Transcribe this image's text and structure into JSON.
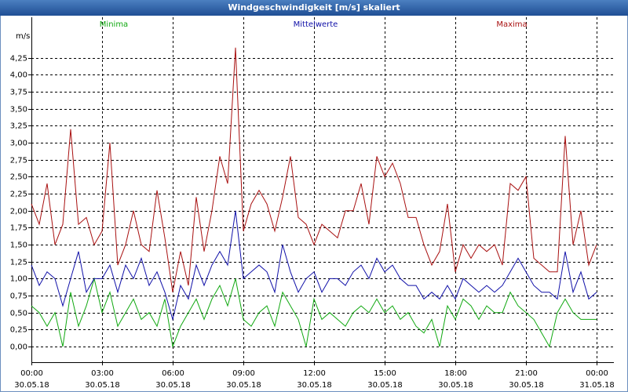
{
  "chart_data": {
    "type": "line",
    "title": "Windgeschwindigkeit [m/s] skaliert",
    "y_label": "m/s",
    "x": [
      0,
      20,
      40,
      60,
      80,
      100,
      120,
      140,
      160,
      180,
      200,
      220,
      240,
      260,
      280,
      300,
      320,
      340,
      360,
      380,
      400,
      420,
      440,
      460,
      480,
      500,
      520,
      540,
      560,
      580,
      600,
      620,
      640,
      660,
      680,
      700,
      720,
      740,
      760,
      780,
      800,
      820,
      840,
      860,
      880,
      900,
      920,
      940,
      960,
      980,
      1000,
      1020,
      1040,
      1060,
      1080,
      1100,
      1120,
      1140,
      1160,
      1180,
      1200,
      1220,
      1240,
      1260,
      1280,
      1300,
      1320,
      1340,
      1360,
      1380,
      1400,
      1420,
      1440
    ],
    "series": [
      {
        "name": "Minima",
        "color": "#10a810",
        "values": [
          0.6,
          0.5,
          0.3,
          0.5,
          0.0,
          0.8,
          0.3,
          0.6,
          1.0,
          0.5,
          0.8,
          0.3,
          0.5,
          0.7,
          0.4,
          0.5,
          0.3,
          0.7,
          0.0,
          0.3,
          0.5,
          0.7,
          0.4,
          0.7,
          0.9,
          0.6,
          1.0,
          0.4,
          0.3,
          0.5,
          0.6,
          0.3,
          0.8,
          0.6,
          0.4,
          0.0,
          0.7,
          0.4,
          0.5,
          0.4,
          0.3,
          0.5,
          0.6,
          0.5,
          0.7,
          0.5,
          0.6,
          0.4,
          0.5,
          0.3,
          0.2,
          0.4,
          0.0,
          0.6,
          0.4,
          0.7,
          0.6,
          0.4,
          0.6,
          0.5,
          0.5,
          0.8,
          0.6,
          0.5,
          0.4,
          0.2,
          0.0,
          0.5,
          0.7,
          0.5,
          0.4,
          0.4,
          0.4
        ]
      },
      {
        "name": "Mittelwerte",
        "color": "#1010a8",
        "values": [
          1.2,
          0.9,
          1.1,
          1.0,
          0.6,
          1.0,
          1.4,
          0.8,
          1.0,
          1.0,
          1.2,
          0.8,
          1.2,
          1.0,
          1.3,
          0.9,
          1.1,
          0.8,
          0.4,
          0.9,
          0.7,
          1.2,
          0.9,
          1.2,
          1.4,
          1.2,
          2.0,
          1.0,
          1.1,
          1.2,
          1.1,
          0.8,
          1.5,
          1.1,
          0.8,
          1.0,
          1.1,
          0.8,
          1.0,
          1.0,
          0.9,
          1.1,
          1.2,
          1.0,
          1.3,
          1.1,
          1.2,
          1.0,
          0.9,
          0.9,
          0.7,
          0.8,
          0.7,
          0.9,
          0.7,
          1.0,
          0.9,
          0.8,
          0.9,
          0.8,
          0.9,
          1.1,
          1.3,
          1.1,
          0.9,
          0.8,
          0.8,
          0.7,
          1.4,
          0.8,
          1.1,
          0.7,
          0.8
        ]
      },
      {
        "name": "Maxima",
        "color": "#a81010",
        "values": [
          2.1,
          1.8,
          2.4,
          1.5,
          1.8,
          3.2,
          1.8,
          1.9,
          1.5,
          1.7,
          3.0,
          1.2,
          1.5,
          2.0,
          1.5,
          1.4,
          2.3,
          1.6,
          0.8,
          1.4,
          0.9,
          2.2,
          1.4,
          2.0,
          2.8,
          2.4,
          4.4,
          1.7,
          2.1,
          2.3,
          2.1,
          1.7,
          2.2,
          2.8,
          1.9,
          1.8,
          1.5,
          1.8,
          1.7,
          1.6,
          2.0,
          2.0,
          2.4,
          1.8,
          2.8,
          2.5,
          2.7,
          2.4,
          1.9,
          1.9,
          1.5,
          1.2,
          1.4,
          2.1,
          1.1,
          1.5,
          1.3,
          1.5,
          1.4,
          1.5,
          1.2,
          2.4,
          2.3,
          2.5,
          1.3,
          1.2,
          1.1,
          1.1,
          3.1,
          1.5,
          2.0,
          1.2,
          1.5
        ]
      }
    ],
    "xlim": [
      0,
      1440
    ],
    "xticks": [
      {
        "value": 0,
        "label": "00:00",
        "date": "30.05.18"
      },
      {
        "value": 180,
        "label": "03:00",
        "date": "30.05.18"
      },
      {
        "value": 360,
        "label": "06:00",
        "date": "30.05.18"
      },
      {
        "value": 540,
        "label": "09:00",
        "date": "30.05.18"
      },
      {
        "value": 720,
        "label": "12:00",
        "date": "30.05.18"
      },
      {
        "value": 900,
        "label": "15:00",
        "date": "30.05.18"
      },
      {
        "value": 1080,
        "label": "18:00",
        "date": "30.05.18"
      },
      {
        "value": 1260,
        "label": "21:00",
        "date": "30.05.18"
      },
      {
        "value": 1440,
        "label": "00:00",
        "date": "31.05.18"
      }
    ],
    "ylim": [
      -0.23,
      4.64
    ],
    "yticks": [
      {
        "value": 0,
        "label": "0,00"
      },
      {
        "value": 0.25,
        "label": "0,25"
      },
      {
        "value": 0.5,
        "label": "0,50"
      },
      {
        "value": 0.75,
        "label": "0,75"
      },
      {
        "value": 1,
        "label": "1,00"
      },
      {
        "value": 1.25,
        "label": "1,25"
      },
      {
        "value": 1.5,
        "label": "1,50"
      },
      {
        "value": 1.75,
        "label": "1,75"
      },
      {
        "value": 2,
        "label": "2,00"
      },
      {
        "value": 2.25,
        "label": "2,25"
      },
      {
        "value": 2.5,
        "label": "2,50"
      },
      {
        "value": 2.75,
        "label": "2,75"
      },
      {
        "value": 3,
        "label": "3,00"
      },
      {
        "value": 3.25,
        "label": "3,25"
      },
      {
        "value": 3.5,
        "label": "3,50"
      },
      {
        "value": 3.75,
        "label": "3,75"
      },
      {
        "value": 4,
        "label": "4,00"
      },
      {
        "value": 4.25,
        "label": "4,25"
      }
    ],
    "grid": true
  }
}
